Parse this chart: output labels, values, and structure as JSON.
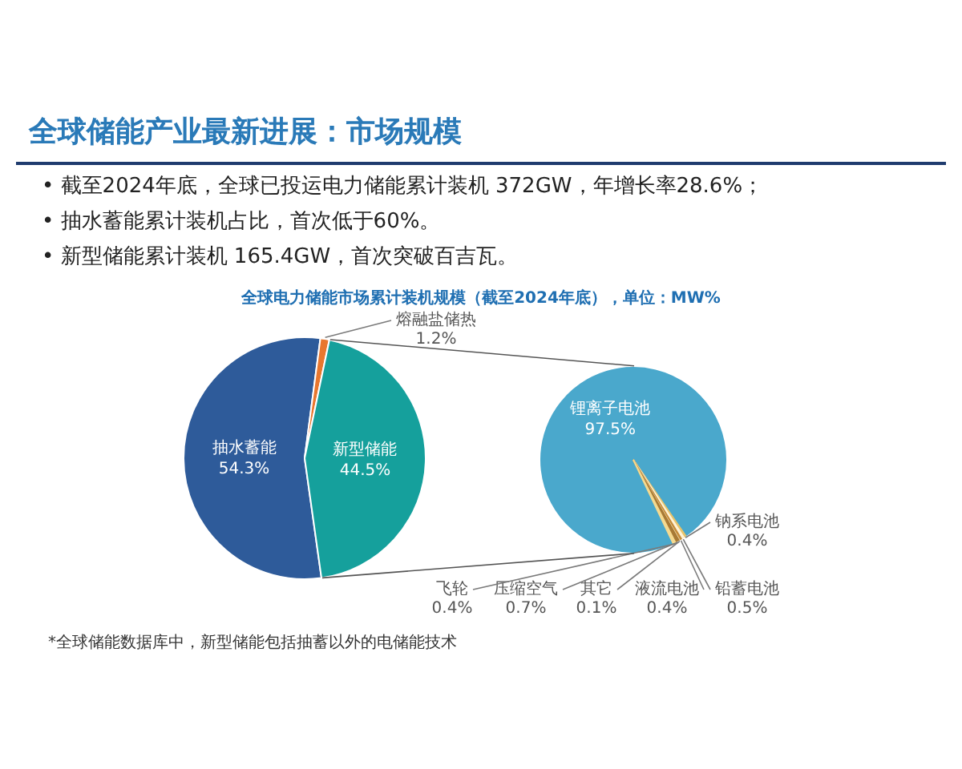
{
  "chart_data": [
    {
      "type": "pie",
      "title": "全球储能产业最新进展：市场规模",
      "subtitle": "全球电力储能市场累计装机规模（截至2024年底），单位：MW%",
      "categories": [
        "抽水蓄能",
        "熔融盐储热",
        "新型储能"
      ],
      "values": [
        54.3,
        1.2,
        44.5
      ],
      "colors": [
        "#2e5b9a",
        "#e8772e",
        "#15a09c"
      ],
      "value_labels": [
        "54.3%",
        "1.2%",
        "44.5%"
      ],
      "annotations": [
        "• 截至2024年底，全球已投运电力储能累计装机 372GW，年增长率28.6%；",
        "• 抽水蓄能累计装机占比，首次低于60%。",
        "• 新型储能累计装机 165.4GW，首次突破百吉瓦。",
        "*全球储能数据库中，新型储能包括抽蓄以外的电储能技术"
      ]
    },
    {
      "type": "pie",
      "categories": [
        "锂离子电池",
        "钠系电池",
        "铅蓄电池",
        "液流电池",
        "其它",
        "压缩空气",
        "飞轮"
      ],
      "values": [
        97.5,
        0.4,
        0.5,
        0.4,
        0.1,
        0.7,
        0.4
      ],
      "colors": [
        "#4aa8cc",
        "#e9c46a",
        "#fff3d6",
        "#c58b3a",
        "#fdf0c4",
        "#a87a35",
        "#f5d98f"
      ],
      "value_labels": [
        "97.5%",
        "0.4%",
        "0.5%",
        "0.4%",
        "0.1%",
        "0.7%",
        "0.4%"
      ]
    }
  ]
}
